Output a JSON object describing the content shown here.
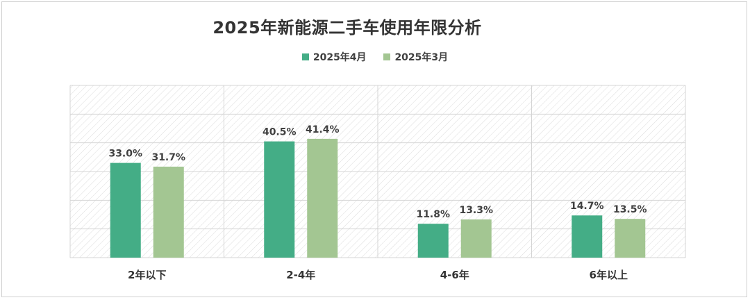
{
  "chart_data": {
    "type": "bar",
    "title": "2025年新能源二手车使用年限分析",
    "categories": [
      "2年以下",
      "2-4年",
      "4-6年",
      "6年以上"
    ],
    "series": [
      {
        "name": "2025年4月",
        "values": [
          33.0,
          40.5,
          11.8,
          14.7
        ],
        "labels": [
          "33.0%",
          "40.5%",
          "11.8%",
          "14.7%"
        ],
        "color": "#44ad86"
      },
      {
        "name": "2025年3月",
        "values": [
          31.7,
          41.4,
          13.3,
          13.5
        ],
        "labels": [
          "31.7%",
          "41.4%",
          "13.3%",
          "13.5%"
        ],
        "color": "#a3c692"
      }
    ],
    "ylim": [
      0,
      60
    ],
    "grid": true,
    "legend_position": "top-center"
  }
}
